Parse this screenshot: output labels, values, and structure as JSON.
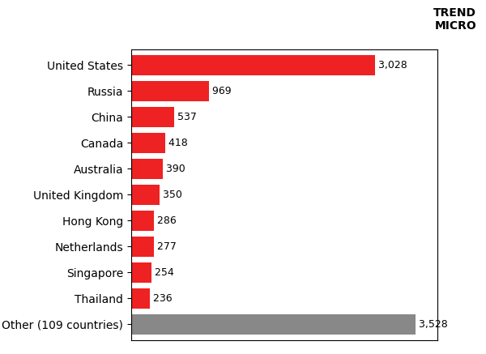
{
  "chart_data": {
    "type": "bar",
    "orientation": "horizontal",
    "categories": [
      "United States",
      "Russia",
      "China",
      "Canada",
      "Australia",
      "United Kingdom",
      "Hong Kong",
      "Netherlands",
      "Singapore",
      "Thailand",
      "Other (109 countries)"
    ],
    "values": [
      3028,
      969,
      537,
      418,
      390,
      350,
      286,
      277,
      254,
      236,
      3528
    ],
    "value_labels": [
      "3,028",
      "969",
      "537",
      "418",
      "390",
      "350",
      "286",
      "277",
      "254",
      "236",
      "3,528"
    ],
    "data_labels": true,
    "colors": [
      "#ee2222",
      "#ee2222",
      "#ee2222",
      "#ee2222",
      "#ee2222",
      "#ee2222",
      "#ee2222",
      "#ee2222",
      "#ee2222",
      "#ee2222",
      "#888888"
    ],
    "xlim": [
      0,
      3800
    ],
    "tick_labels": "y",
    "grid": false,
    "annotation": "TREND\nMICRO"
  }
}
